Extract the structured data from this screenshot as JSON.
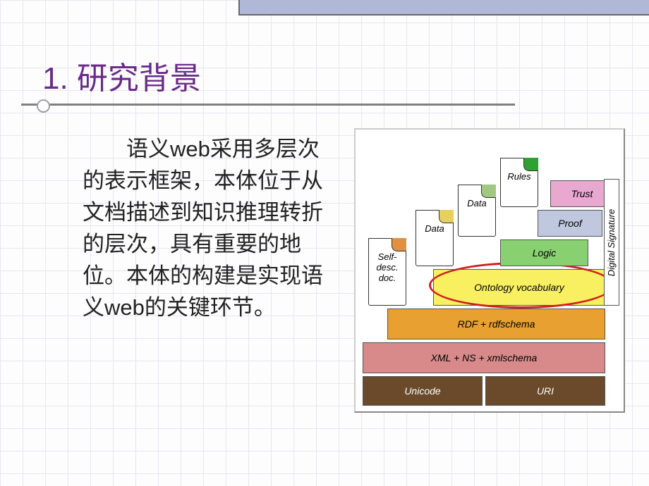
{
  "slide": {
    "title": "1. 研究背景",
    "body": "语义web采用多层次的表示框架，本体位于从文档描述到知识推理转折的层次，具有重要的地位。本体的构建是实现语义web的关键环节。",
    "title_color": "#6a2a8a",
    "title_fontsize": 44,
    "body_fontsize": 31,
    "underline_color": "#808080",
    "grid_color": "#e6e6f0",
    "grid_size": 32,
    "top_bar_color": "#b0b8d8"
  },
  "diagram": {
    "type": "layer-stack",
    "background": "#ffffff",
    "highlight_ring_color": "#d02020",
    "layers": {
      "unicode": {
        "label": "Unicode",
        "color": "#6a4a2a",
        "text_color": "#ffffff"
      },
      "uri": {
        "label": "URI",
        "color": "#6a4a2a",
        "text_color": "#ffffff"
      },
      "xml": {
        "label": "XML + NS + xmlschema",
        "color": "#d88a8a"
      },
      "rdf": {
        "label": "RDF + rdfschema",
        "color": "#e8a030"
      },
      "ontology": {
        "label": "Ontology vocabulary",
        "color": "#f8f060",
        "highlighted": true
      },
      "logic": {
        "label": "Logic",
        "color": "#88d070"
      },
      "proof": {
        "label": "Proof",
        "color": "#c0c8e0"
      },
      "trust": {
        "label": "Trust",
        "color": "#e8a8d0"
      },
      "signature": {
        "label": "Digital Signature",
        "color": "#ffffff"
      }
    },
    "docs": {
      "d1": {
        "label": "Self-\ndesc.\ndoc.",
        "flap_color": "#e09040"
      },
      "d2": {
        "label": "Data",
        "flap_color": "#e8d060"
      },
      "d3": {
        "label": "Data",
        "flap_color": "#a0c880"
      },
      "d4": {
        "label": "Rules",
        "flap_color": "#30a030"
      }
    }
  }
}
